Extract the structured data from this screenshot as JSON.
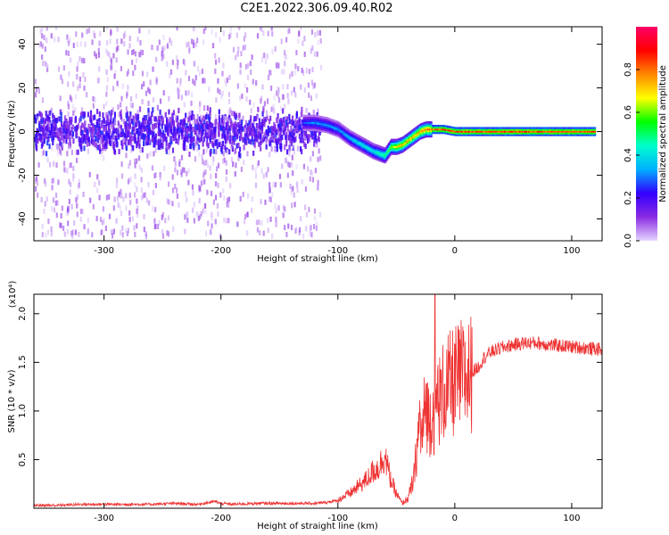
{
  "title": "C2E1.2022.306.09.40.R02",
  "chart_data": [
    {
      "type": "heatmap",
      "xlabel": "Height of straight line (km)",
      "ylabel": "Frequency (Hz)",
      "xlim": [
        -360,
        126
      ],
      "ylim": [
        -50,
        48
      ],
      "x_ticks": [
        -300,
        -200,
        -100,
        0,
        100
      ],
      "x_tick_labels": [
        "-300",
        "-200",
        "-100",
        "0",
        "100"
      ],
      "y_ticks": [
        -40,
        -20,
        0,
        20,
        40
      ],
      "y_tick_labels": [
        "-40",
        "-20",
        "0",
        "20",
        "40"
      ],
      "colorbar": {
        "label": "Normalized spectral amplitude",
        "range": [
          0,
          1
        ],
        "ticks": [
          0.0,
          0.2,
          0.4,
          0.6,
          0.8
        ],
        "tick_labels": [
          "0.0",
          "0.2",
          "0.4",
          "0.6",
          "0.8"
        ],
        "colormap": [
          "#e6d6ff",
          "#8a2be2",
          "#3300ff",
          "#00b0ff",
          "#00ffcc",
          "#00ff00",
          "#ffff00",
          "#ff8800",
          "#ff0000",
          "#ff0066"
        ]
      },
      "ridge": {
        "x": [
          -130,
          -120,
          -110,
          -100,
          -90,
          -80,
          -70,
          -60,
          -55,
          -50,
          -45,
          -40,
          -35,
          -30,
          -25,
          -20,
          -10,
          0,
          50,
          120
        ],
        "freq": [
          4,
          4,
          3,
          1,
          -3,
          -6,
          -9,
          -11,
          -7,
          -7,
          -6,
          -4,
          -2,
          0,
          1,
          1,
          1,
          0,
          0,
          0
        ],
        "amplitude": [
          0.3,
          0.35,
          0.35,
          0.35,
          0.4,
          0.45,
          0.45,
          0.55,
          0.65,
          0.75,
          0.8,
          0.8,
          0.8,
          0.85,
          0.85,
          0.85,
          0.9,
          0.9,
          0.9,
          0.9
        ]
      },
      "noise_region": {
        "x": [
          -360,
          -115
        ],
        "freq_spread": 48
      },
      "grid": false
    },
    {
      "type": "line",
      "xlabel": "Height of straight line (km)",
      "ylabel": "SNR (10 * v/v)",
      "y_multiplier_label": "(x10⁴)",
      "xlim": [
        -360,
        126
      ],
      "ylim": [
        0,
        2.2
      ],
      "x_ticks": [
        -300,
        -200,
        -100,
        0,
        100
      ],
      "x_tick_labels": [
        "-300",
        "-200",
        "-100",
        "0",
        "100"
      ],
      "y_ticks": [
        0.5,
        1.0,
        1.5,
        2.0
      ],
      "y_tick_labels": [
        "0.5",
        "1.0",
        "1.5",
        "2.0"
      ],
      "series": [
        {
          "color": "#ee3333",
          "x": [
            -360,
            -340,
            -320,
            -300,
            -280,
            -260,
            -240,
            -220,
            -205,
            -200,
            -190,
            -170,
            -150,
            -130,
            -120,
            -110,
            -100,
            -95,
            -90,
            -85,
            -80,
            -75,
            -70,
            -65,
            -60,
            -55,
            -50,
            -45,
            -40,
            -35,
            -30,
            -28,
            -25,
            -22,
            -20,
            -17,
            -15,
            -12,
            -10,
            -5,
            0,
            5,
            10,
            15,
            20,
            25,
            30,
            40,
            50,
            60,
            70,
            80,
            90,
            100,
            110,
            126
          ],
          "y": [
            0.03,
            0.03,
            0.04,
            0.04,
            0.04,
            0.04,
            0.05,
            0.04,
            0.07,
            0.05,
            0.04,
            0.05,
            0.05,
            0.05,
            0.05,
            0.06,
            0.08,
            0.12,
            0.15,
            0.2,
            0.25,
            0.3,
            0.38,
            0.42,
            0.55,
            0.3,
            0.15,
            0.05,
            0.1,
            0.3,
            0.9,
            0.7,
            1.1,
            0.9,
            1.0,
            0.95,
            1.15,
            1.1,
            1.2,
            1.25,
            1.3,
            1.35,
            1.35,
            1.4,
            1.45,
            1.55,
            1.6,
            1.65,
            1.68,
            1.7,
            1.7,
            1.68,
            1.67,
            1.66,
            1.65,
            1.63
          ]
        }
      ],
      "grid": false
    }
  ]
}
